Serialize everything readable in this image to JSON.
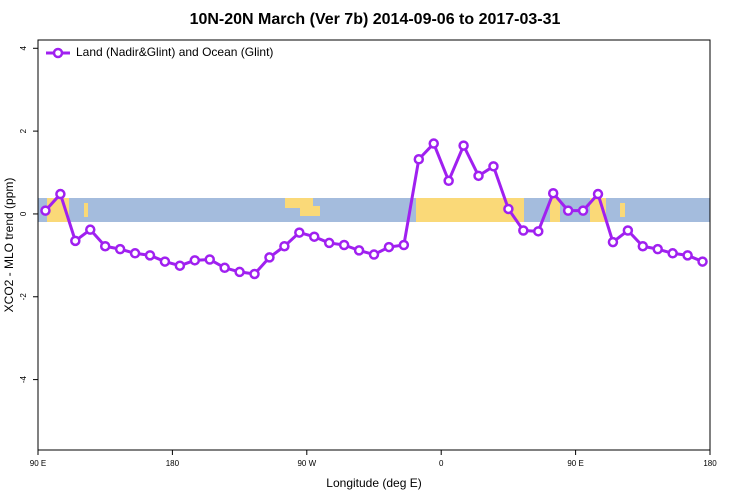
{
  "chart_data": {
    "type": "line",
    "title": "10N-20N March (Ver 7b)   2014-09-06 to 2017-03-31",
    "xlabel": "Longitude (deg E)",
    "ylabel": "XCO2 - MLO trend (ppm)",
    "x": [
      95,
      105,
      115,
      125,
      135,
      145,
      155,
      165,
      175,
      185,
      195,
      205,
      215,
      225,
      235,
      245,
      255,
      265,
      275,
      285,
      295,
      305,
      315,
      325,
      335,
      345,
      355,
      365,
      375,
      385,
      395,
      405,
      415,
      425,
      435,
      445,
      455,
      465,
      475,
      485,
      495,
      505,
      515,
      525,
      535
    ],
    "series": [
      {
        "name": "Land (Nadir&Glint) and Ocean (Glint)",
        "color": "#a020f0",
        "values": [
          0.08,
          0.48,
          -0.65,
          -0.38,
          -0.78,
          -0.85,
          -0.95,
          -1.0,
          -1.15,
          -1.25,
          -1.12,
          -1.1,
          -1.3,
          -1.4,
          -1.45,
          -1.05,
          -0.78,
          -0.45,
          -0.55,
          -0.7,
          -0.75,
          -0.88,
          -0.98,
          -0.8,
          -0.75,
          1.32,
          1.7,
          0.8,
          1.65,
          0.92,
          1.15,
          0.12,
          -0.4,
          -0.42,
          0.5,
          0.08,
          0.08,
          0.48,
          -0.68,
          -0.4,
          -0.78,
          -0.85,
          -0.95,
          -1.0,
          -1.15
        ]
      }
    ],
    "xlim": [
      90,
      540
    ],
    "ylim": [
      -5.7,
      4.2
    ],
    "xticks": [
      {
        "value": 90,
        "label": "90 E"
      },
      180,
      {
        "value": 270,
        "label": "90 W"
      },
      {
        "value": 360,
        "label": "0"
      },
      {
        "value": 450,
        "label": "90 E"
      },
      {
        "value": 540,
        "label": "180"
      }
    ],
    "yticks": [
      -4,
      -2,
      0,
      2,
      4
    ],
    "legend": "top-left"
  }
}
